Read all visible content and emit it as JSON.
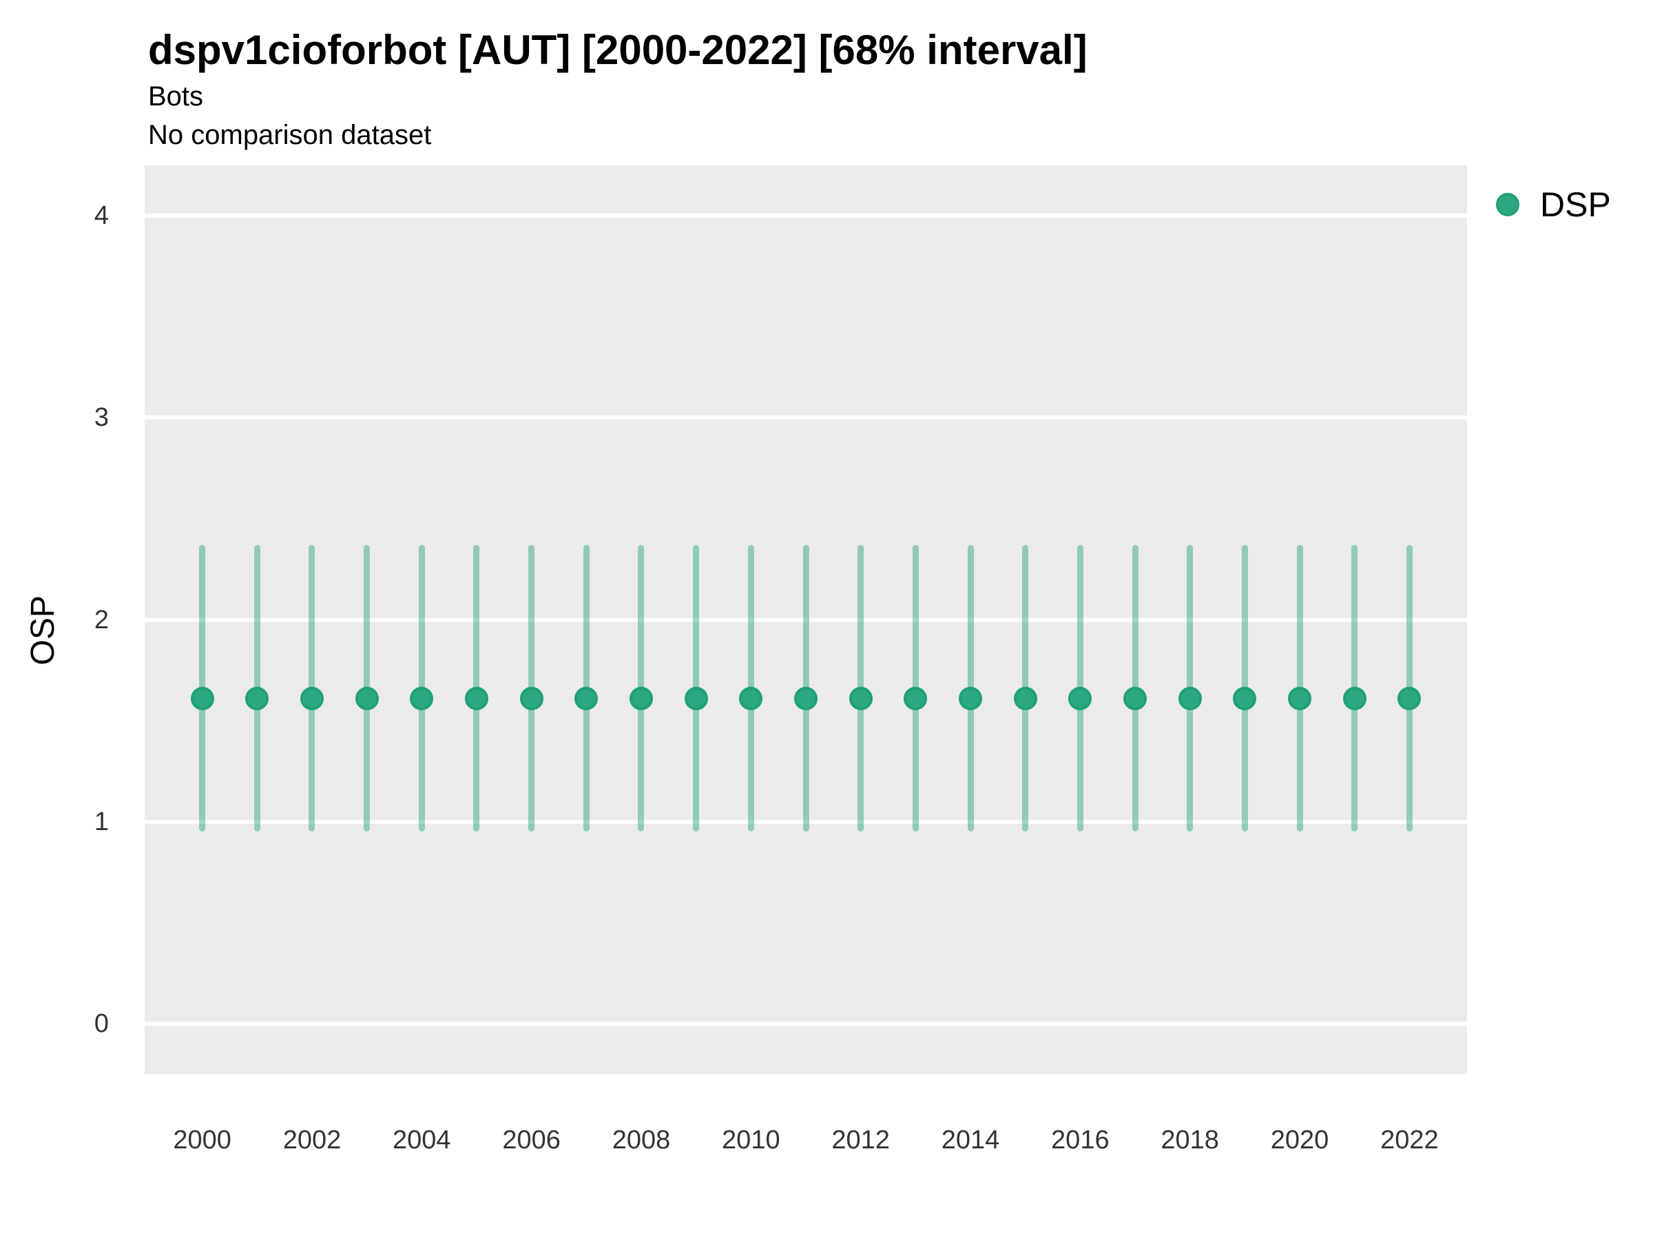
{
  "header": {
    "title": "dspv1cioforbot [AUT] [2000-2022] [68% interval]",
    "subtitle": "Bots",
    "note": "No comparison dataset"
  },
  "legend": {
    "position": "right",
    "items": [
      {
        "label": "DSP",
        "color": "#2BA882"
      }
    ]
  },
  "axes": {
    "y_label": "OSP",
    "x_label": ""
  },
  "chart_data": {
    "type": "pointrange",
    "title": "dspv1cioforbot [AUT] [2000-2022] [68% interval]",
    "subtitle": "Bots",
    "note": "No comparison dataset",
    "xlabel": "",
    "ylabel": "OSP",
    "interval": "68%",
    "x": [
      2000,
      2001,
      2002,
      2003,
      2004,
      2005,
      2006,
      2007,
      2008,
      2009,
      2010,
      2011,
      2012,
      2013,
      2014,
      2015,
      2016,
      2017,
      2018,
      2019,
      2020,
      2021,
      2022
    ],
    "series": [
      {
        "name": "DSP",
        "mid": [
          1.61,
          1.61,
          1.61,
          1.61,
          1.61,
          1.61,
          1.61,
          1.61,
          1.61,
          1.61,
          1.61,
          1.61,
          1.61,
          1.61,
          1.61,
          1.61,
          1.61,
          1.61,
          1.61,
          1.61,
          1.61,
          1.61,
          1.61
        ],
        "low": [
          0.95,
          0.95,
          0.95,
          0.95,
          0.95,
          0.95,
          0.95,
          0.95,
          0.95,
          0.95,
          0.95,
          0.95,
          0.95,
          0.95,
          0.95,
          0.95,
          0.95,
          0.95,
          0.95,
          0.95,
          0.95,
          0.95,
          0.95
        ],
        "high": [
          2.37,
          2.37,
          2.37,
          2.37,
          2.37,
          2.37,
          2.37,
          2.37,
          2.37,
          2.37,
          2.37,
          2.37,
          2.37,
          2.37,
          2.37,
          2.37,
          2.37,
          2.37,
          2.37,
          2.37,
          2.37,
          2.37,
          2.37
        ]
      }
    ],
    "xticks": [
      2000,
      2002,
      2004,
      2006,
      2008,
      2010,
      2012,
      2014,
      2016,
      2018,
      2020,
      2022
    ],
    "yticks": [
      0,
      1,
      2,
      3,
      4
    ],
    "xlim": [
      1998.95,
      2023.05
    ],
    "ylim": [
      -0.25,
      4.25
    ],
    "grid": "horizontal-major-only",
    "legend_position": "right",
    "colors": {
      "point": "#2BA882",
      "point_border": "#1FA076",
      "range": "rgba(42,168,126,0.47)",
      "plot_bg": "#EBEBEB",
      "grid": "#FFFFFF"
    }
  }
}
